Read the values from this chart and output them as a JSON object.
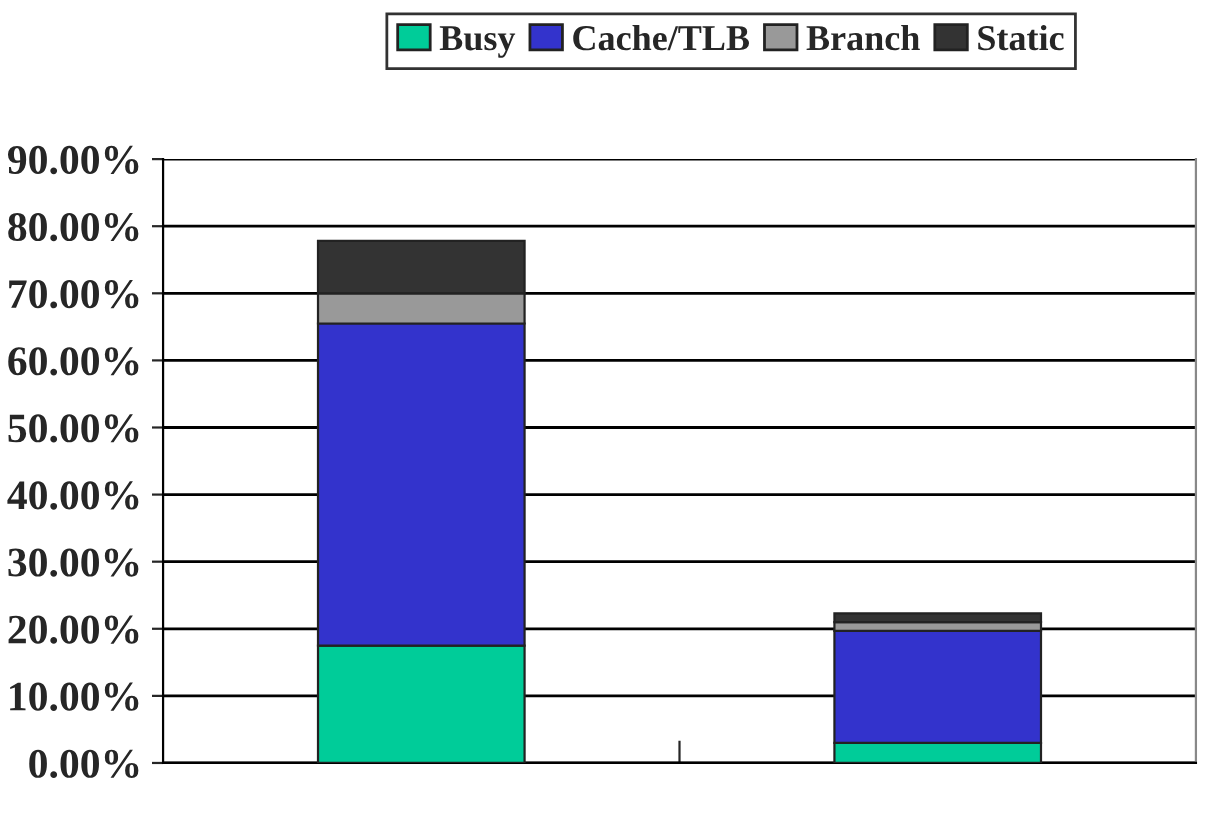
{
  "chart_data": {
    "type": "bar",
    "stacked": true,
    "categories": [
      null,
      null
    ],
    "series": [
      {
        "name": "Busy",
        "color": "#00cc99",
        "values": [
          17.5,
          3
        ]
      },
      {
        "name": "Cache/TLB",
        "color": "#3333cc",
        "values": [
          48,
          16.7
        ]
      },
      {
        "name": "Branch",
        "color": "#999999",
        "values": [
          4.5,
          1.3
        ]
      },
      {
        "name": "Static",
        "color": "#333333",
        "values": [
          7.8,
          1.3
        ]
      }
    ],
    "ylim": [
      0,
      90
    ],
    "yticks": [
      {
        "value": 0,
        "label": "0.00%"
      },
      {
        "value": 10,
        "label": "10.00%"
      },
      {
        "value": 20,
        "label": "20.00%"
      },
      {
        "value": 30,
        "label": "30.00%"
      },
      {
        "value": 40,
        "label": "40.00%"
      },
      {
        "value": 50,
        "label": "50.00%"
      },
      {
        "value": 60,
        "label": "60.00%"
      },
      {
        "value": 70,
        "label": "70.00%"
      },
      {
        "value": 80,
        "label": "80.00%"
      },
      {
        "value": 90,
        "label": "90.00%"
      }
    ],
    "grid": "y",
    "legend": "top",
    "tick_labels": "y"
  }
}
